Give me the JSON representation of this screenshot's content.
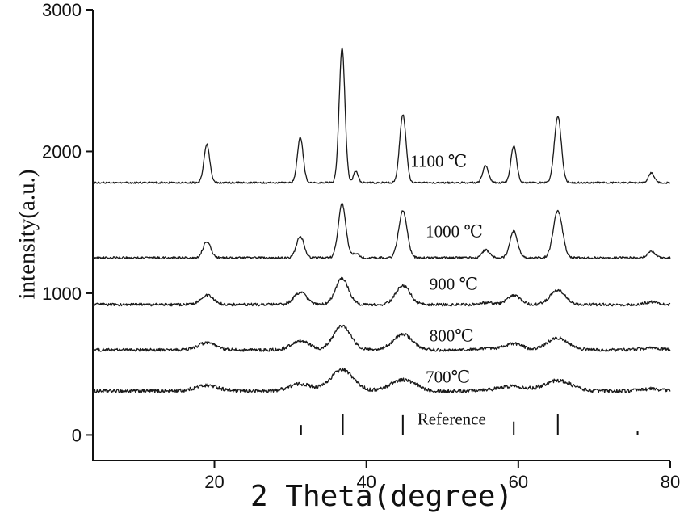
{
  "figure": {
    "background": "#ffffff"
  },
  "chart_data": {
    "type": "line",
    "title": "",
    "xlabel": "2 Theta(degree)",
    "ylabel": "intensity(a.u.)",
    "xlim": [
      4,
      80
    ],
    "ylim": [
      -180,
      3000
    ],
    "x_ticks": [
      20,
      40,
      60,
      80
    ],
    "y_ticks": [
      0,
      1000,
      2000,
      3000
    ],
    "grid": false,
    "legend": "inline labels above each trace",
    "axis_color": "#111111",
    "curve_color": "#1a1a1a",
    "peak_positions": [
      19.0,
      31.3,
      36.8,
      38.6,
      44.8,
      55.7,
      59.4,
      65.2,
      77.5
    ],
    "peak_width_scale": [
      1,
      1,
      1,
      0.8,
      1.1,
      1,
      1,
      1.2,
      1
    ],
    "series": [
      {
        "label": "700℃",
        "baseline": 310,
        "peak_amps": [
          40,
          50,
          150,
          0,
          80,
          10,
          35,
          75,
          15
        ],
        "peak_width": 1.5,
        "noise": 26,
        "label_pos": [
          47.8,
          405
        ]
      },
      {
        "label": "800℃",
        "baseline": 600,
        "peak_amps": [
          50,
          65,
          170,
          0,
          110,
          12,
          45,
          85,
          15
        ],
        "peak_width": 1.15,
        "noise": 22,
        "label_pos": [
          48.3,
          695
        ]
      },
      {
        "label": "900 ℃",
        "baseline": 920,
        "peak_amps": [
          65,
          85,
          185,
          0,
          135,
          15,
          65,
          100,
          18
        ],
        "peak_width": 0.85,
        "noise": 20,
        "label_pos": [
          48.3,
          1060
        ]
      },
      {
        "label": "1000 ℃",
        "baseline": 1250,
        "peak_amps": [
          115,
          150,
          380,
          30,
          330,
          55,
          190,
          330,
          45
        ],
        "peak_width": 0.5,
        "noise": 15,
        "label_pos": [
          47.8,
          1430
        ]
      },
      {
        "label": "1100 ℃",
        "baseline": 1780,
        "peak_amps": [
          270,
          320,
          950,
          80,
          480,
          120,
          260,
          470,
          70
        ],
        "peak_width": 0.38,
        "noise": 12,
        "label_pos": [
          45.8,
          1930
        ]
      }
    ],
    "reference": {
      "label": "Reference",
      "positions": [
        31.4,
        36.9,
        44.8,
        59.4,
        65.2,
        75.7
      ],
      "heights": [
        70,
        150,
        140,
        95,
        150,
        25
      ],
      "label_pos": [
        46.7,
        110
      ]
    }
  }
}
